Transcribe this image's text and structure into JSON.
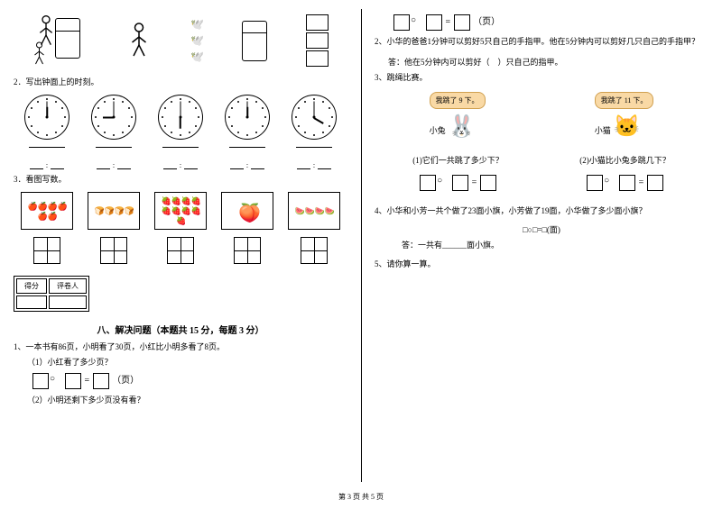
{
  "colors": {
    "bg": "#ffffff",
    "text": "#000000",
    "bubble_bg": "#f9d9a5",
    "bubble_border": "#d0a050"
  },
  "left": {
    "q2_title": "2．写出钟面上的时刻。",
    "clocks": [
      {
        "hour_angle": -90,
        "minute_angle": -90
      },
      {
        "hour_angle": 0,
        "minute_angle": -90
      },
      {
        "hour_angle": 90,
        "minute_angle": -90
      },
      {
        "hour_angle": 180,
        "minute_angle": -90
      },
      {
        "hour_angle": 45,
        "minute_angle": -90
      }
    ],
    "q3_title": "3．看图写数。",
    "fruit_boxes": [
      {
        "emoji": "🍎",
        "count": 6,
        "color": "#b02020"
      },
      {
        "emoji": "🍞",
        "count": 4,
        "color": "#d0a050"
      },
      {
        "emoji": "🍓",
        "count": 9,
        "color": "#d03030"
      },
      {
        "emoji": "🍑",
        "count": 1,
        "color": "#f0a090"
      },
      {
        "emoji": "🍉",
        "count": 4,
        "color": "#20a050"
      }
    ],
    "score_labels": {
      "score": "得分",
      "reviewer": "评卷人"
    },
    "section8_title": "八、解决问题（本题共 15 分，每题 3 分）",
    "q8_1": "1、一本书有86页，小明看了30页，小红比小明多看了8页。",
    "q8_1_1": "（1）小红看了多少页？",
    "q8_1_unit": "（页）",
    "q8_1_2": "（2）小明还剩下多少页没有看？"
  },
  "right": {
    "eq_unit": "（页）",
    "q2": "2、小华的爸爸1分钟可以剪好5只自己的手指甲。他在5分钟内可以剪好几只自己的手指甲？",
    "q2_answer": "答：他在5分钟内可以剪好（　）只自己的指甲。",
    "q3_title": "3、跳绳比赛。",
    "rabbit_speech": "我跳了 9 下。",
    "cat_speech": "我跳了 11 下。",
    "rabbit_label": "小兔",
    "cat_label": "小猫",
    "q3_1": "(1)它们一共跳了多少下？",
    "q3_2": "(2)小猫比小兔多跳几下？",
    "q4": "4、小华和小芳一共个做了23面小旗，小芳做了19面，小华做了多少面小旗？",
    "q4_eq": "□○□=□(面)",
    "q4_answer": "答：一共有______面小旗。",
    "q5": "5、请你算一算。"
  },
  "footer": "第 3 页 共 5 页"
}
